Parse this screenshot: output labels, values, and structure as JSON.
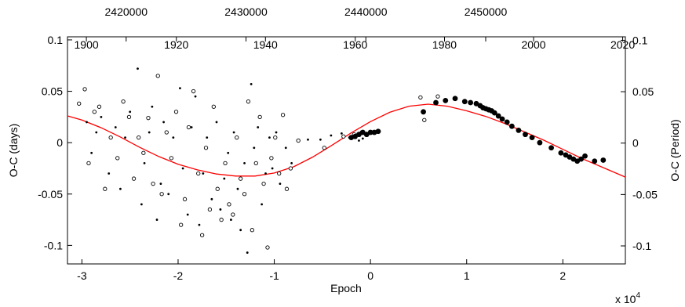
{
  "chart_data": {
    "type": "scatter",
    "title": "",
    "xlabel": "Epoch",
    "x_exponent_label": "x 10",
    "x_exponent_power": "4",
    "ylabel_left": "O-C (days)",
    "ylabel_right": "O-C (Period)",
    "xlim": [
      -31500,
      26500
    ],
    "ylim": [
      -0.118,
      0.103
    ],
    "grid": false,
    "legend": "none",
    "colors": {
      "fit": "#ff0000",
      "points": "#000000",
      "frame": "#000000"
    },
    "x_ticks": [
      {
        "value": -30000,
        "label": "-3"
      },
      {
        "value": -20000,
        "label": "-2"
      },
      {
        "value": -10000,
        "label": "-1"
      },
      {
        "value": 0,
        "label": "0"
      },
      {
        "value": 10000,
        "label": "1"
      },
      {
        "value": 20000,
        "label": "2"
      }
    ],
    "y_ticks_left": [
      {
        "value": 0.1,
        "label": "0.1"
      },
      {
        "value": 0.05,
        "label": "0.05"
      },
      {
        "value": 0,
        "label": "0"
      },
      {
        "value": -0.05,
        "label": "-0.05"
      },
      {
        "value": -0.1,
        "label": "-0.1"
      }
    ],
    "top_jd_ticks": [
      {
        "epoch": -25400,
        "label": "2420000"
      },
      {
        "epoch": -12940,
        "label": "2430000"
      },
      {
        "epoch": -480,
        "label": "2440000"
      },
      {
        "epoch": 11980,
        "label": "2450000"
      }
    ],
    "year_ticks": [
      {
        "epoch": -29400,
        "label": "1900"
      },
      {
        "epoch": -19400,
        "label": "1920"
      },
      {
        "epoch": -9500,
        "label": "1940"
      },
      {
        "epoch": 480,
        "label": "1960"
      },
      {
        "epoch": 10400,
        "label": "1980"
      },
      {
        "epoch": 20300,
        "label": "2000"
      },
      {
        "epoch": 30200,
        "label": "2020"
      }
    ],
    "y_ticks_right": [
      {
        "value": 0.0705,
        "label": "0.1"
      },
      {
        "value": 0.0351,
        "label": "0.05"
      },
      {
        "value": -0.0003,
        "label": "0"
      },
      {
        "value": -0.0357,
        "label": "-0.05"
      },
      {
        "value": -0.0711,
        "label": "-0.1"
      }
    ],
    "fit_curve": {
      "name": "",
      "x": [
        -31500,
        -30000,
        -28000,
        -26000,
        -24000,
        -22000,
        -20000,
        -18000,
        -16000,
        -14000,
        -12000,
        -10000,
        -8000,
        -6000,
        -4000,
        -2000,
        0,
        2000,
        4000,
        6000,
        8000,
        10000,
        12000,
        14000,
        16000,
        18000,
        20000,
        22000,
        24000,
        26500
      ],
      "y": [
        0.026,
        0.022,
        0.0145,
        0.0055,
        -0.0045,
        -0.0135,
        -0.021,
        -0.0265,
        -0.0305,
        -0.0325,
        -0.0325,
        -0.0295,
        -0.0235,
        -0.014,
        -0.0025,
        0.0095,
        0.0205,
        0.0295,
        0.0355,
        0.0375,
        0.0355,
        0.031,
        0.0255,
        0.0185,
        0.0105,
        0.0025,
        -0.0065,
        -0.0155,
        -0.0235,
        -0.0335
      ]
    },
    "series": [
      {
        "name": "",
        "marker": "small-dot",
        "x": [
          -29500,
          -29000,
          -28500,
          -28000,
          -27200,
          -26500,
          -26000,
          -25500,
          -25000,
          -24200,
          -23800,
          -23500,
          -23000,
          -22700,
          -22200,
          -21800,
          -21500,
          -21000,
          -20500,
          -19800,
          -19500,
          -19000,
          -18600,
          -18200,
          -17800,
          -17400,
          -17000,
          -16500,
          -16000,
          -15600,
          -15200,
          -14800,
          -14500,
          -14200,
          -13800,
          -13500,
          -13100,
          -12800,
          -12400,
          -12100,
          -11700,
          -11300,
          -10900,
          -10500,
          -10200,
          -9800,
          -9400,
          -8800,
          -8200,
          -7600,
          -6500,
          -5200,
          -4100,
          -3000,
          -2200,
          -1200,
          -800
        ],
        "y": [
          0.02,
          -0.01,
          0.01,
          0.025,
          -0.03,
          0.015,
          -0.045,
          0.005,
          0.03,
          0.072,
          -0.06,
          -0.02,
          0.01,
          0.035,
          -0.075,
          -0.04,
          0.02,
          -0.05,
          0.005,
          0.053,
          -0.025,
          -0.07,
          0.015,
          0.045,
          -0.08,
          -0.03,
          0.005,
          -0.055,
          0.02,
          -0.065,
          -0.035,
          -0.01,
          -0.075,
          0.01,
          -0.045,
          -0.085,
          -0.02,
          -0.107,
          0.057,
          -0.005,
          0.015,
          -0.06,
          -0.03,
          0.005,
          -0.025,
          0.01,
          -0.04,
          -0.005,
          -0.02,
          0.002,
          0.003,
          0.003,
          0.007,
          0.009,
          0.005,
          0.002,
          0.004
        ]
      },
      {
        "name": "",
        "marker": "open-circle",
        "x": [
          -30300,
          -29700,
          -29300,
          -28700,
          -28200,
          -27600,
          -27000,
          -26300,
          -25700,
          -25100,
          -24600,
          -24100,
          -23600,
          -23100,
          -22600,
          -22100,
          -21700,
          -21200,
          -20700,
          -20200,
          -19700,
          -19300,
          -18900,
          -18400,
          -17900,
          -17500,
          -17100,
          -16700,
          -16300,
          -15900,
          -15500,
          -15100,
          -14700,
          -14300,
          -13900,
          -13500,
          -13100,
          -12700,
          -12300,
          -11900,
          -11500,
          -11100,
          -10700,
          -10300,
          -9900,
          -9500,
          -9100,
          -8700,
          -8300,
          -7500,
          -4800,
          -2800,
          -1700,
          -900,
          5200,
          5600,
          7000
        ],
        "y": [
          0.038,
          0.052,
          -0.02,
          0.03,
          0.035,
          -0.045,
          0.005,
          -0.015,
          0.04,
          0.025,
          -0.035,
          0.005,
          -0.01,
          0.024,
          -0.04,
          0.065,
          -0.05,
          0.01,
          -0.015,
          0.03,
          -0.08,
          -0.055,
          0.015,
          0.05,
          -0.03,
          -0.09,
          -0.005,
          -0.065,
          0.035,
          -0.045,
          -0.075,
          -0.02,
          -0.06,
          -0.07,
          0.005,
          -0.035,
          -0.05,
          0.04,
          -0.085,
          -0.02,
          0.025,
          -0.04,
          -0.102,
          -0.015,
          0.005,
          -0.03,
          0.027,
          -0.045,
          -0.025,
          0.002,
          -0.005,
          0.006,
          0.008,
          0.01,
          0.044,
          0.022,
          0.045
        ]
      },
      {
        "name": "",
        "marker": "filled-circle",
        "x": [
          -2000,
          -1600,
          -1200,
          -800,
          -400,
          0,
          400,
          800,
          5500,
          6800,
          7800,
          8800,
          9800,
          10400,
          11000,
          11400,
          11700,
          12000,
          12300,
          12600,
          12900,
          13300,
          13700,
          14200,
          14700,
          15400,
          16100,
          16800,
          17600,
          18800,
          19800,
          20300,
          20700,
          21100,
          21500,
          21900,
          22300,
          23300,
          24200
        ],
        "y": [
          0.005,
          0.006,
          0.008,
          0.01,
          0.008,
          0.01,
          0.01,
          0.011,
          0.03,
          0.039,
          0.041,
          0.043,
          0.04,
          0.039,
          0.038,
          0.036,
          0.034,
          0.033,
          0.032,
          0.031,
          0.029,
          0.026,
          0.023,
          0.02,
          0.016,
          0.012,
          0.008,
          0.005,
          0.0,
          -0.005,
          -0.01,
          -0.012,
          -0.014,
          -0.016,
          -0.018,
          -0.016,
          -0.013,
          -0.018,
          -0.017
        ]
      }
    ]
  }
}
